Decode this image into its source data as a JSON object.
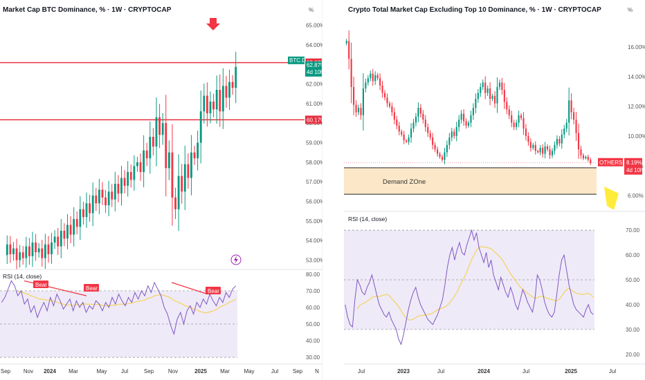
{
  "colors": {
    "up": "#089981",
    "down": "#f23645",
    "hline": "#e5303f",
    "rsi": "#7e57c2",
    "rsi_ma": "#f3d35c",
    "rsi_band": "#efeaf8",
    "demand_zone": "#fce8c8",
    "arrow": "#f23645",
    "yellow_marker": "#ffeb3b"
  },
  "left": {
    "title": "Market Cap BTC Dominance, % · 1W · CRYPTOCAP",
    "unit_label": "%",
    "y_ticks": [
      "65.00%",
      "64.00%",
      "63.00%",
      "62.00%",
      "61.00%",
      "60.00%",
      "59.00%",
      "58.00%",
      "57.00%",
      "56.00%",
      "55.00%",
      "54.00%",
      "53.00%"
    ],
    "price_tag": {
      "label": "BTC.D",
      "value": "62.87%",
      "countdown": "4d 10h"
    },
    "level_tags": [
      "63.09%",
      "60.17%"
    ],
    "rsi_title": "RSI (14, close)",
    "rsi_ticks": [
      "80.00",
      "70.00",
      "60.00",
      "50.00",
      "40.00",
      "30.00"
    ],
    "bear_labels": [
      "Bear",
      "Bear",
      "Bear"
    ],
    "x_ticks": [
      "Sep",
      "Nov",
      "2024",
      "Mar",
      "May",
      "Jul",
      "Sep",
      "Nov",
      "2025",
      "Mar",
      "May",
      "Jul",
      "Sep",
      "N"
    ]
  },
  "right": {
    "title": "Crypto Total Market Cap Excluding Top 10 Dominance, % · 1W · CRYPTOCAP",
    "unit_label": "%",
    "y_ticks": [
      "16.00%",
      "14.00%",
      "12.00%",
      "10.00%",
      "8.00%",
      "6.00%"
    ],
    "price_tag": {
      "label": "OTHERS.D",
      "value": "8.19%",
      "countdown": "4d 10h"
    },
    "zone_label": "Demand ZOne",
    "rsi_title": "RSI (14, close)",
    "rsi_ticks": [
      "70.00",
      "60.00",
      "50.00",
      "40.00",
      "30.00",
      "20.00"
    ],
    "x_ticks": [
      "Jul",
      "2023",
      "Jul",
      "2024",
      "Jul",
      "2025",
      "Jul"
    ]
  },
  "chart_data": [
    {
      "type": "candlestick",
      "title": "Market Cap BTC Dominance, % · 1W · CRYPTOCAP",
      "ylim": [
        52.7,
        65.3
      ],
      "horizontal_levels": [
        63.09,
        60.17
      ],
      "last_value": 62.87,
      "closes": [
        53.8,
        53.3,
        53.6,
        53.0,
        53.4,
        53.1,
        53.7,
        53.2,
        53.9,
        53.4,
        53.6,
        53.1,
        53.8,
        53.3,
        53.9,
        54.2,
        53.7,
        54.5,
        54.1,
        54.8,
        54.3,
        55.1,
        54.7,
        55.6,
        55.2,
        55.9,
        55.4,
        56.3,
        55.9,
        56.6,
        56.2,
        55.8,
        56.5,
        56.1,
        56.9,
        56.4,
        57.2,
        56.8,
        57.5,
        57.1,
        57.8,
        58.0,
        57.5,
        58.6,
        58.2,
        59.3,
        58.8,
        60.3,
        59.4,
        60.0,
        57.7,
        58.5,
        56.2,
        55.6,
        57.3,
        56.5,
        57.9,
        57.2,
        58.5,
        58.2,
        59.0,
        60.6,
        61.4,
        60.5,
        61.1,
        60.7,
        61.7,
        60.6,
        61.9,
        61.3,
        62.1,
        61.8,
        62.87
      ],
      "rsi": {
        "ylim": [
          28,
          82
        ],
        "band": [
          30,
          70
        ],
        "values": [
          63,
          66,
          71,
          76,
          73,
          67,
          70,
          62,
          65,
          57,
          61,
          54,
          59,
          63,
          58,
          66,
          61,
          68,
          64,
          59,
          62,
          65,
          58,
          64,
          60,
          63,
          57,
          61,
          59,
          64,
          62,
          58,
          63,
          60,
          66,
          62,
          68,
          64,
          61,
          66,
          63,
          69,
          65,
          70,
          67,
          73,
          69,
          75,
          71,
          67,
          60,
          56,
          49,
          44,
          53,
          57,
          50,
          58,
          61,
          56,
          63,
          60,
          65,
          62,
          68,
          64,
          61,
          66,
          63,
          69,
          66,
          71,
          73
        ]
      }
    },
    {
      "type": "candlestick",
      "title": "Crypto Total Market Cap Excluding Top 10 Dominance, % · 1W · CRYPTOCAP",
      "ylim": [
        5.2,
        17.3
      ],
      "demand_zone": [
        6.08,
        7.86
      ],
      "last_value": 8.19,
      "closes": [
        16.4,
        15.2,
        13.3,
        12.1,
        11.6,
        11.9,
        11.4,
        13.2,
        13.6,
        13.9,
        14.2,
        13.7,
        14.1,
        13.9,
        13.4,
        12.9,
        12.6,
        12.2,
        12.0,
        11.6,
        11.1,
        10.7,
        10.3,
        10.1,
        9.7,
        9.6,
        9.9,
        10.5,
        10.9,
        11.3,
        11.9,
        11.5,
        11.1,
        10.6,
        10.2,
        9.9,
        9.4,
        9.1,
        8.8,
        8.6,
        8.4,
        8.9,
        9.4,
        9.9,
        10.3,
        10.0,
        10.6,
        11.1,
        11.5,
        11.0,
        10.7,
        10.9,
        11.4,
        11.9,
        12.5,
        12.9,
        13.3,
        13.6,
        12.9,
        13.2,
        12.5,
        12.7,
        12.2,
        13.3,
        13.6,
        13.1,
        12.3,
        11.8,
        11.4,
        10.9,
        10.6,
        10.9,
        11.4,
        11.2,
        10.5,
        10.0,
        9.6,
        9.2,
        9.4,
        9.0,
        8.9,
        9.2,
        8.8,
        9.3,
        9.1,
        8.7,
        9.0,
        9.4,
        9.8,
        9.5,
        10.1,
        10.5,
        10.9,
        12.4,
        11.6,
        11.1,
        10.2,
        9.1,
        8.7,
        8.5,
        8.6,
        8.4,
        8.19
      ],
      "rsi": {
        "ylim": [
          18,
          72
        ],
        "band": [
          30,
          70
        ],
        "values": [
          40,
          35,
          32,
          31,
          42,
          50,
          48,
          45,
          44,
          47,
          49,
          52,
          48,
          44,
          40,
          38,
          36,
          35,
          37,
          34,
          32,
          30,
          26,
          24,
          28,
          33,
          38,
          42,
          45,
          47,
          43,
          40,
          38,
          36,
          34,
          33,
          32,
          34,
          36,
          39,
          42,
          48,
          55,
          60,
          63,
          58,
          62,
          65,
          61,
          60,
          64,
          67,
          70,
          66,
          69,
          63,
          60,
          57,
          61,
          55,
          58,
          52,
          49,
          46,
          51,
          48,
          45,
          43,
          47,
          44,
          40,
          38,
          42,
          46,
          44,
          41,
          39,
          37,
          42,
          52,
          50,
          46,
          41,
          38,
          36,
          35,
          37,
          44,
          52,
          58,
          60,
          54,
          48,
          44,
          40,
          38,
          37,
          36,
          35,
          38,
          40,
          37,
          36
        ]
      }
    }
  ]
}
